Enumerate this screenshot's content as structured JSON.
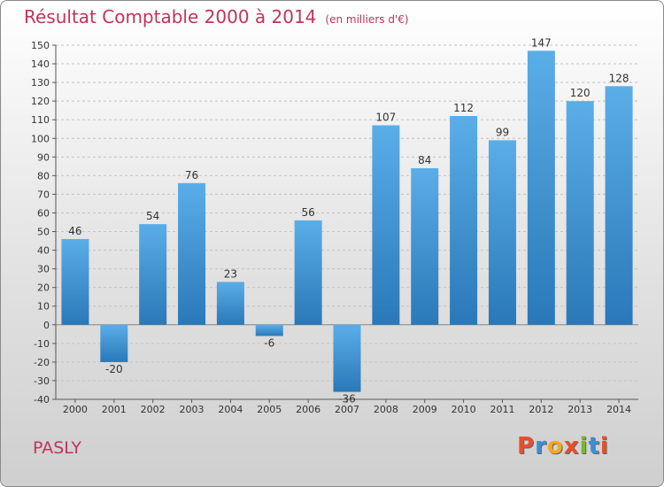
{
  "header": {
    "title": "Résultat Comptable 2000 à 2014",
    "unit": "(en milliers d'€)"
  },
  "footer": {
    "commune": "PASLY",
    "logo_text": "Proxiti"
  },
  "colors": {
    "title": "#c0345a",
    "bar_top": "#5aaee8",
    "bar_bottom": "#2a78b8",
    "logo_letters": [
      "#e94e2a",
      "#3b8fd6",
      "#f2a81d",
      "#e94e2a",
      "#7ab530",
      "#3b8fd6",
      "#e94e2a"
    ]
  },
  "chart_data": {
    "type": "bar",
    "title": "Résultat Comptable 2000 à 2014",
    "subtitle": "(en milliers d'€)",
    "categories": [
      "2000",
      "2001",
      "2002",
      "2003",
      "2004",
      "2005",
      "2006",
      "2007",
      "2008",
      "2009",
      "2010",
      "2011",
      "2012",
      "2013",
      "2014"
    ],
    "values": [
      46,
      -20,
      54,
      76,
      23,
      -6,
      56,
      -36,
      107,
      84,
      112,
      99,
      147,
      120,
      128
    ],
    "ylim": [
      -40,
      150
    ],
    "ytick_step": 10,
    "grid": "horizontal dashed",
    "legend": "none"
  }
}
